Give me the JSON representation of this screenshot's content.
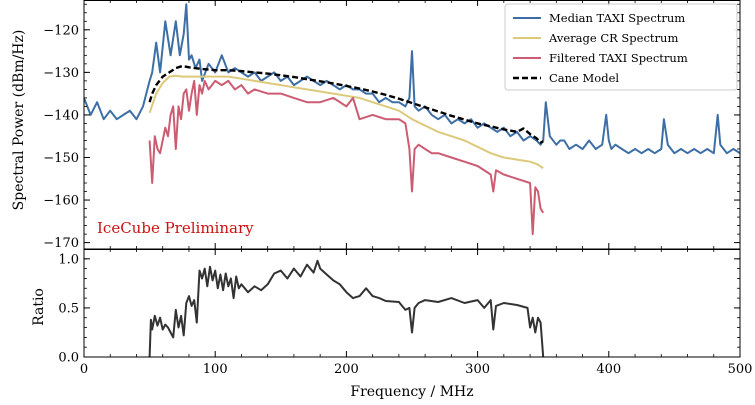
{
  "chart_data": {
    "type": "line",
    "xlabel": "Frequency / MHz",
    "xlim": [
      0,
      500
    ],
    "xticks": [
      0,
      100,
      200,
      300,
      400,
      500
    ],
    "annotation": "IceCube Preliminary",
    "colors": {
      "median": "#3d6fa6",
      "average_cr": "#dcc97a",
      "filtered": "#cc5c72",
      "cane": "#000000",
      "ratio": "#333333",
      "annotation": "#cc1111"
    },
    "legend": {
      "position": "top-right",
      "entries": [
        {
          "label": "Median TAXI Spectrum",
          "series": "median"
        },
        {
          "label": "Average CR Spectrum",
          "series": "average_cr"
        },
        {
          "label": "Filtered TAXI Spectrum",
          "series": "filtered"
        },
        {
          "label": "Cane Model",
          "series": "cane"
        }
      ]
    },
    "panels": [
      {
        "id": "spectrum",
        "ylabel": "Spectral Power (dBm/Hz)",
        "ylim": [
          -171.5,
          -113
        ],
        "yticks": [
          -170,
          -160,
          -150,
          -140,
          -130,
          -120
        ],
        "series": [
          {
            "key": "median",
            "style": "solid",
            "x": [
              0,
              5,
              10,
              15,
              20,
              25,
              30,
              35,
              40,
              45,
              50,
              52,
              55,
              58,
              62,
              66,
              70,
              73,
              76,
              78,
              80,
              82,
              85,
              88,
              90,
              95,
              100,
              105,
              110,
              115,
              120,
              125,
              130,
              135,
              140,
              145,
              150,
              155,
              160,
              165,
              170,
              175,
              180,
              185,
              190,
              195,
              200,
              205,
              210,
              215,
              220,
              225,
              230,
              235,
              240,
              245,
              248,
              250,
              252,
              255,
              260,
              265,
              270,
              275,
              280,
              285,
              290,
              295,
              300,
              305,
              310,
              315,
              320,
              325,
              330,
              335,
              340,
              345,
              348,
              350,
              352,
              355,
              360,
              363,
              366,
              370,
              375,
              380,
              385,
              390,
              395,
              398,
              400,
              402,
              405,
              410,
              415,
              420,
              425,
              430,
              435,
              440,
              442,
              445,
              450,
              455,
              460,
              465,
              470,
              475,
              480,
              483,
              485,
              490,
              495,
              500
            ],
            "y": [
              -136,
              -140,
              -137,
              -141,
              -139,
              -141,
              -140,
              -139,
              -141,
              -138,
              -132,
              -130,
              -123,
              -130,
              -118,
              -126,
              -118,
              -126,
              -121,
              -114,
              -127,
              -126,
              -129,
              -127,
              -132,
              -128,
              -130,
              -126,
              -130,
              -129,
              -130,
              -131,
              -130,
              -132,
              -131,
              -130,
              -132,
              -131,
              -133,
              -132,
              -131,
              -132,
              -133,
              -132,
              -133,
              -134,
              -133,
              -134,
              -134,
              -135,
              -135,
              -137,
              -136,
              -137,
              -137,
              -138,
              -136,
              -125,
              -138,
              -139,
              -138,
              -140,
              -141,
              -140,
              -142,
              -141,
              -142,
              -141,
              -143,
              -142,
              -143,
              -144,
              -143,
              -145,
              -144,
              -146,
              -145,
              -146,
              -147,
              -146,
              -137,
              -145,
              -147,
              -146,
              -146,
              -148,
              -147,
              -148,
              -146,
              -148,
              -147,
              -140,
              -146,
              -148,
              -147,
              -148,
              -149,
              -148,
              -149,
              -148,
              -149,
              -148,
              -141,
              -147,
              -149,
              -148,
              -149,
              -148,
              -149,
              -148,
              -149,
              -140,
              -147,
              -149,
              -148,
              -149
            ]
          },
          {
            "key": "average_cr",
            "style": "solid",
            "x": [
              50,
              55,
              60,
              65,
              70,
              75,
              80,
              90,
              100,
              110,
              120,
              130,
              140,
              150,
              160,
              170,
              180,
              190,
              200,
              210,
              220,
              230,
              240,
              250,
              260,
              270,
              280,
              290,
              300,
              310,
              320,
              330,
              340,
              345,
              350
            ],
            "y": [
              -139.5,
              -135,
              -132.5,
              -131,
              -130.8,
              -131,
              -131,
              -131,
              -131,
              -131,
              -131.5,
              -132,
              -132.5,
              -133,
              -133.5,
              -134,
              -134.5,
              -135,
              -135.5,
              -136,
              -137,
              -138,
              -139,
              -141,
              -142.5,
              -144,
              -145,
              -146,
              -147.5,
              -149,
              -150,
              -150.5,
              -151,
              -151.5,
              -152.5
            ]
          },
          {
            "key": "filtered",
            "style": "solid",
            "x": [
              50,
              52,
              54,
              56,
              58,
              62,
              64,
              66,
              68,
              70,
              72,
              74,
              76,
              78,
              80,
              82,
              84,
              86,
              88,
              90,
              92,
              95,
              100,
              105,
              110,
              115,
              120,
              125,
              130,
              140,
              150,
              160,
              170,
              180,
              190,
              200,
              205,
              210,
              220,
              230,
              240,
              245,
              248,
              250,
              252,
              255,
              260,
              265,
              270,
              280,
              290,
              300,
              310,
              312,
              314,
              320,
              330,
              340,
              342,
              344,
              346,
              348,
              350
            ],
            "y": [
              -146,
              -156,
              -145,
              -148,
              -149,
              -143,
              -145,
              -140,
              -138,
              -148,
              -138,
              -141,
              -135,
              -134,
              -139,
              -135,
              -132,
              -140,
              -133,
              -135,
              -132,
              -134,
              -132,
              -133,
              -132,
              -134,
              -133,
              -135,
              -134,
              -135,
              -135,
              -136,
              -137,
              -137,
              -136,
              -138,
              -136,
              -141,
              -140,
              -141,
              -141,
              -142,
              -148,
              -158,
              -148,
              -147,
              -148,
              -149,
              -149,
              -150,
              -151,
              -152,
              -154,
              -158,
              -153,
              -154,
              -155,
              -156,
              -168,
              -157,
              -158,
              -162,
              -163
            ]
          },
          {
            "key": "cane",
            "style": "dashed",
            "x": [
              50,
              52,
              55,
              60,
              65,
              70,
              75,
              80,
              90,
              100,
              110,
              120,
              130,
              140,
              150,
              160,
              170,
              180,
              190,
              200,
              210,
              220,
              230,
              240,
              250,
              260,
              270,
              280,
              290,
              300,
              310,
              320,
              330,
              335,
              340,
              345,
              348,
              350
            ],
            "y": [
              -137,
              -135,
              -133,
              -131,
              -130,
              -129,
              -128.5,
              -128.8,
              -129.2,
              -129.5,
              -129.5,
              -129.7,
              -130,
              -130.3,
              -130.7,
              -131.1,
              -131.6,
              -132.1,
              -132.6,
              -133.2,
              -133.8,
              -134.5,
              -135.3,
              -136.2,
              -137.2,
              -138.2,
              -139.2,
              -140.2,
              -141.1,
              -142,
              -142.7,
              -143.4,
              -144,
              -143.2,
              -144.5,
              -145.5,
              -146.5,
              -146.2
            ]
          }
        ]
      },
      {
        "id": "ratio",
        "ylabel": "Ratio",
        "ylim": [
          0,
          1.1
        ],
        "yticks": [
          0.0,
          0.5,
          1.0
        ],
        "series": [
          {
            "key": "ratio",
            "style": "solid",
            "x": [
              50,
              51,
              52,
              54,
              56,
              58,
              60,
              62,
              64,
              66,
              68,
              70,
              72,
              74,
              76,
              78,
              80,
              82,
              84,
              86,
              88,
              90,
              92,
              94,
              96,
              98,
              100,
              102,
              104,
              106,
              108,
              110,
              112,
              114,
              116,
              118,
              120,
              125,
              130,
              135,
              140,
              145,
              150,
              155,
              160,
              165,
              170,
              175,
              178,
              180,
              185,
              190,
              195,
              200,
              205,
              210,
              215,
              220,
              225,
              230,
              240,
              245,
              248,
              250,
              252,
              255,
              260,
              270,
              280,
              290,
              300,
              305,
              310,
              312,
              314,
              320,
              330,
              338,
              340,
              342,
              344,
              346,
              348,
              350
            ],
            "y": [
              0,
              0.38,
              0.28,
              0.42,
              0.32,
              0.4,
              0.28,
              0.33,
              0.3,
              0.25,
              0.2,
              0.48,
              0.3,
              0.42,
              0.22,
              0.55,
              0.62,
              0.52,
              0.58,
              0.35,
              0.88,
              0.8,
              0.9,
              0.72,
              0.92,
              0.78,
              0.88,
              0.7,
              0.84,
              0.68,
              0.85,
              0.72,
              0.8,
              0.6,
              0.82,
              0.7,
              0.74,
              0.66,
              0.72,
              0.68,
              0.74,
              0.85,
              0.88,
              0.8,
              0.9,
              0.82,
              0.94,
              0.86,
              0.98,
              0.9,
              0.84,
              0.78,
              0.74,
              0.66,
              0.6,
              0.62,
              0.7,
              0.62,
              0.6,
              0.57,
              0.56,
              0.48,
              0.5,
              0.25,
              0.5,
              0.55,
              0.58,
              0.56,
              0.6,
              0.55,
              0.58,
              0.5,
              0.58,
              0.28,
              0.52,
              0.55,
              0.53,
              0.5,
              0.3,
              0.4,
              0.25,
              0.4,
              0.35,
              0
            ]
          }
        ]
      }
    ]
  }
}
